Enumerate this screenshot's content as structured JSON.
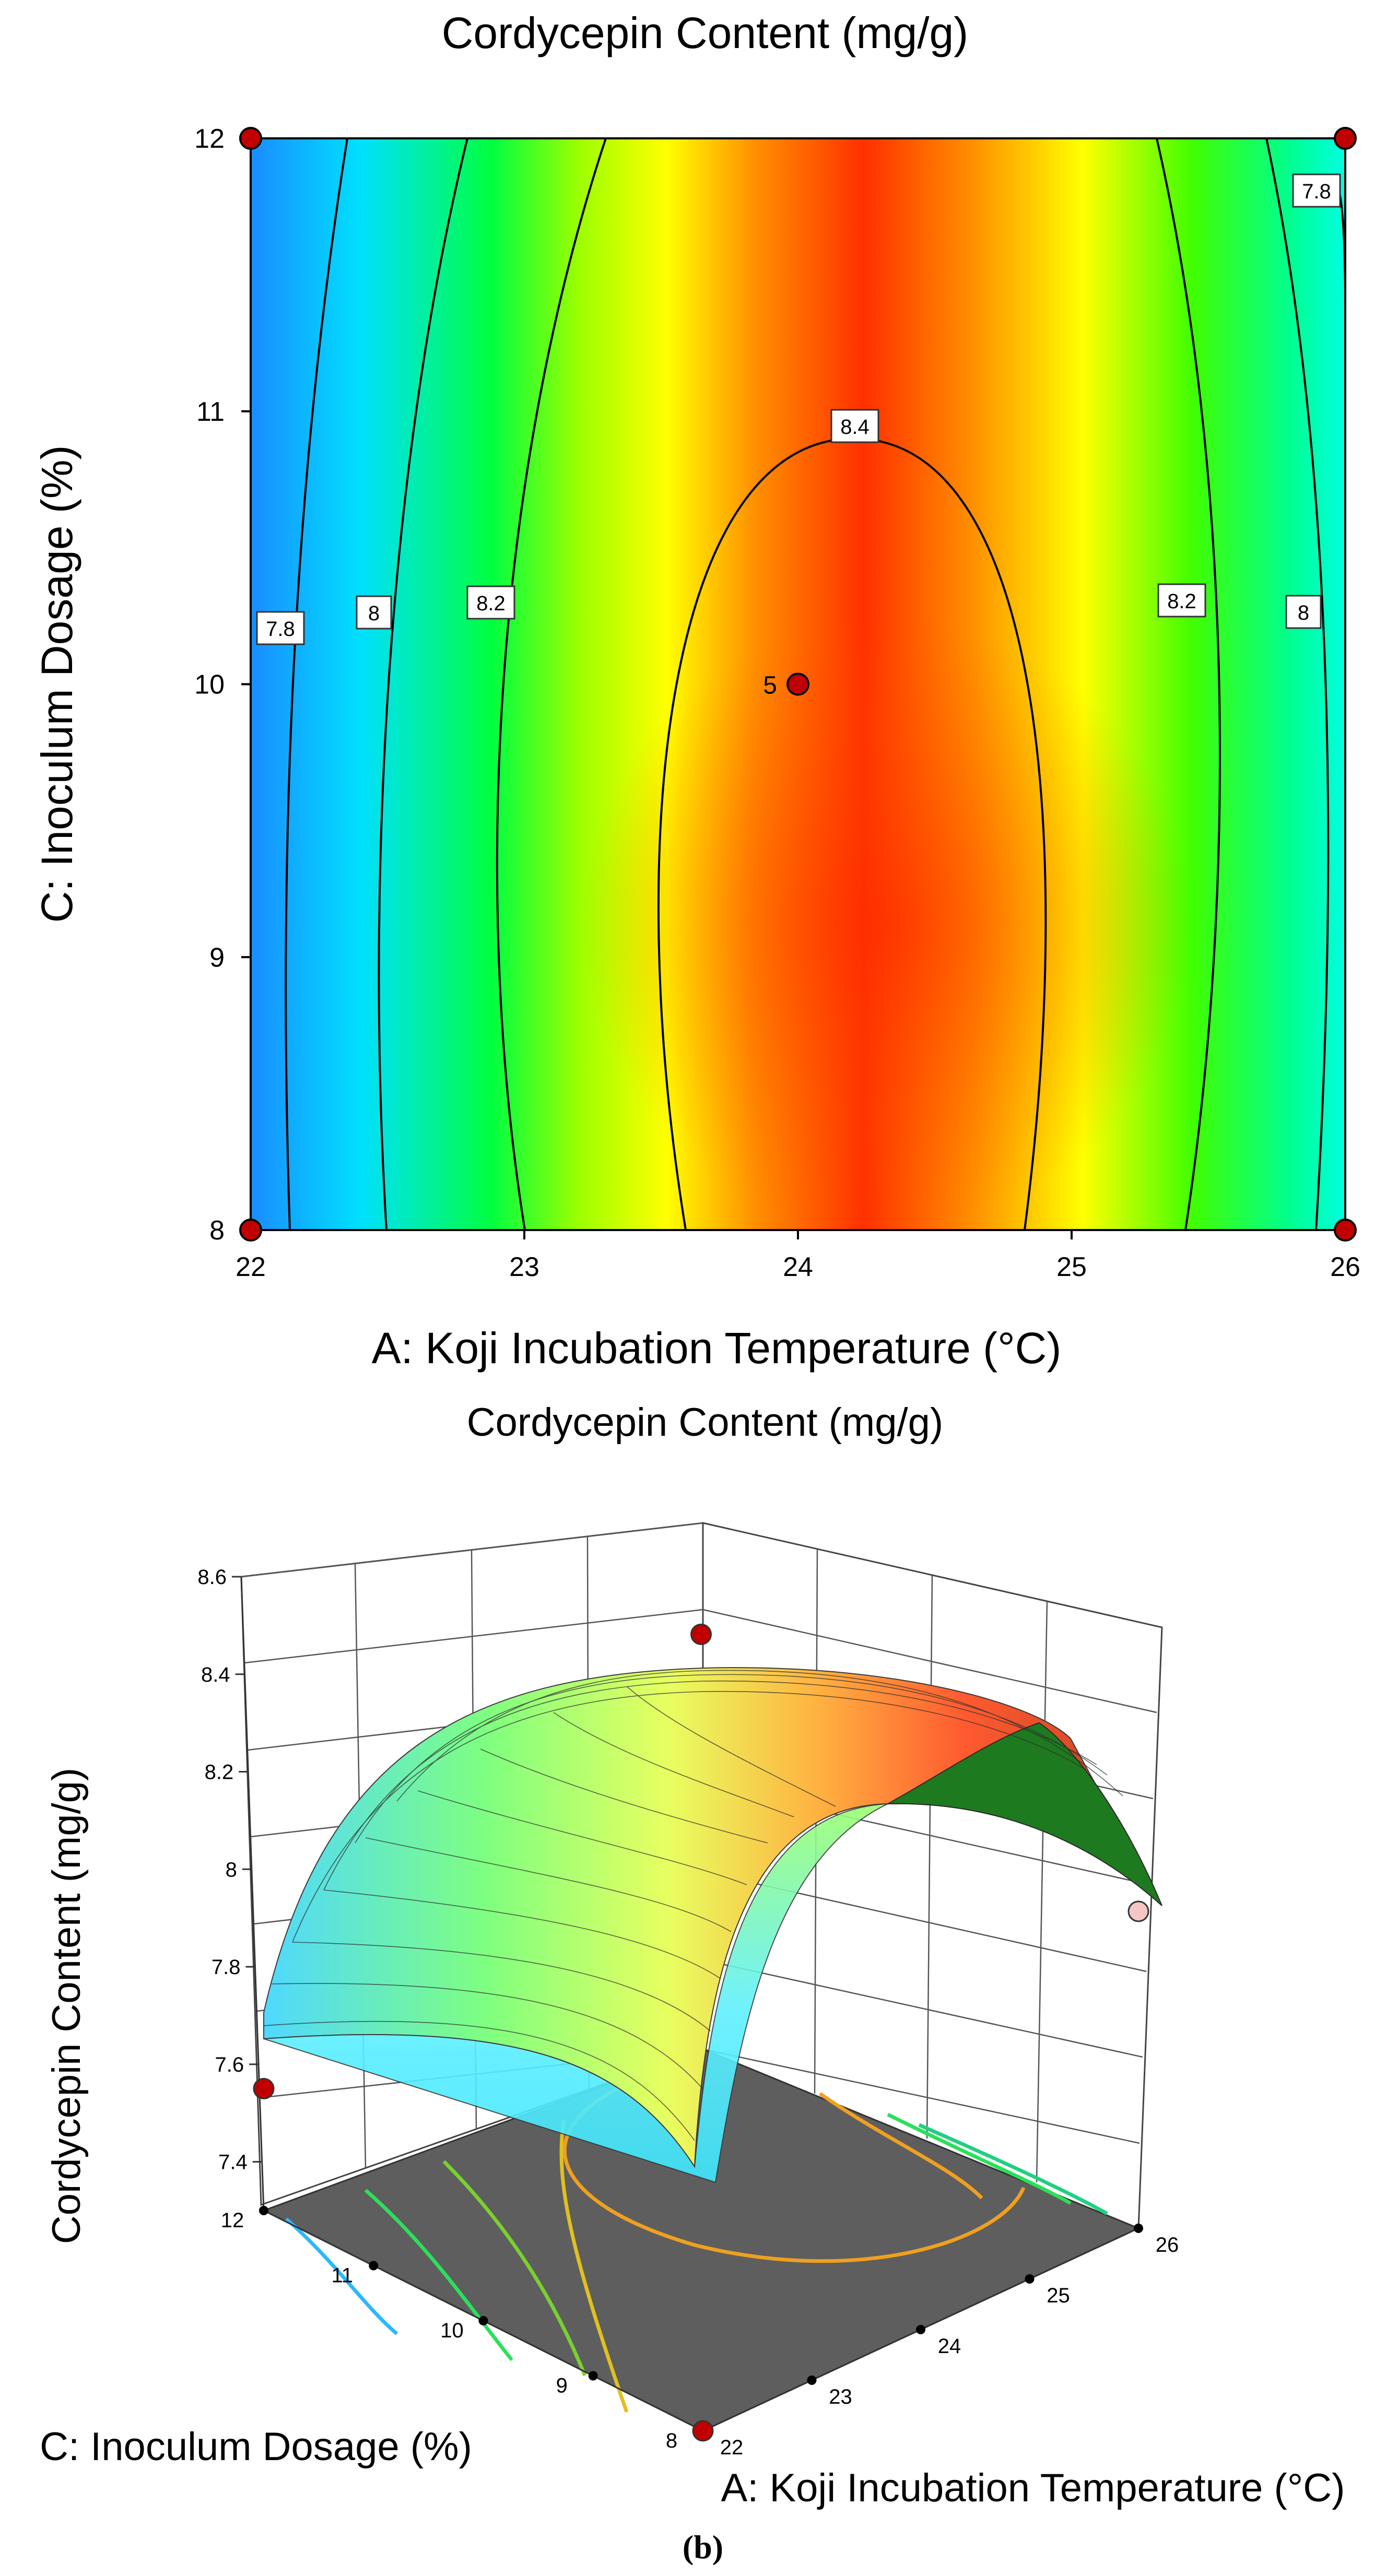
{
  "chart_data": [
    {
      "type": "contour",
      "title": "Cordycepin Content (mg/g)",
      "xlabel": "A: Koji Incubation Temperature (°C)",
      "ylabel": "C: Inoculum Dosage (%)",
      "xlim": [
        22,
        26
      ],
      "ylim": [
        8,
        12
      ],
      "x_ticks": [
        "22",
        "23",
        "24",
        "25",
        "26"
      ],
      "y_ticks": [
        "8",
        "9",
        "10",
        "11",
        "12"
      ],
      "contour_levels": [
        "7.8",
        "8",
        "8.2",
        "8.4"
      ],
      "colormap": [
        "#0080ff",
        "#00ffff",
        "#00ff00",
        "#ffff00",
        "#ff8000",
        "#ff2000"
      ],
      "design_points": [
        {
          "x": 22,
          "y": 12,
          "label": ""
        },
        {
          "x": 26,
          "y": 12,
          "label": ""
        },
        {
          "x": 24,
          "y": 10,
          "label": "5"
        },
        {
          "x": 22,
          "y": 8,
          "label": ""
        },
        {
          "x": 26,
          "y": 8,
          "label": ""
        }
      ],
      "point_color": "#c00000"
    },
    {
      "type": "surface3d",
      "title": "Cordycepin Content (mg/g)",
      "zlabel": "Cordycepin Content (mg/g)",
      "xlabel": "A: Koji Incubation Temperature (°C)",
      "ylabel": "C: Inoculum Dosage (%)",
      "z_ticks": [
        "7.4",
        "7.6",
        "7.8",
        "8",
        "8.2",
        "8.4",
        "8.6"
      ],
      "x_ticks": [
        "22",
        "23",
        "24",
        "25",
        "26"
      ],
      "y_ticks": [
        "8",
        "9",
        "10",
        "11",
        "12"
      ],
      "zlim": [
        7.3,
        8.6
      ],
      "design_points": [
        {
          "a": 24,
          "c": 10,
          "z": 8.5,
          "color": "#c00000"
        },
        {
          "a": 22,
          "c": 12,
          "z": 7.55,
          "color": "#c00000"
        },
        {
          "a": 26,
          "c": 8,
          "z": 7.95,
          "color": "#f4c6c6"
        },
        {
          "a": 22,
          "c": 8,
          "z": 7.3,
          "color": "#c00000"
        }
      ]
    }
  ],
  "caption": "(b)"
}
